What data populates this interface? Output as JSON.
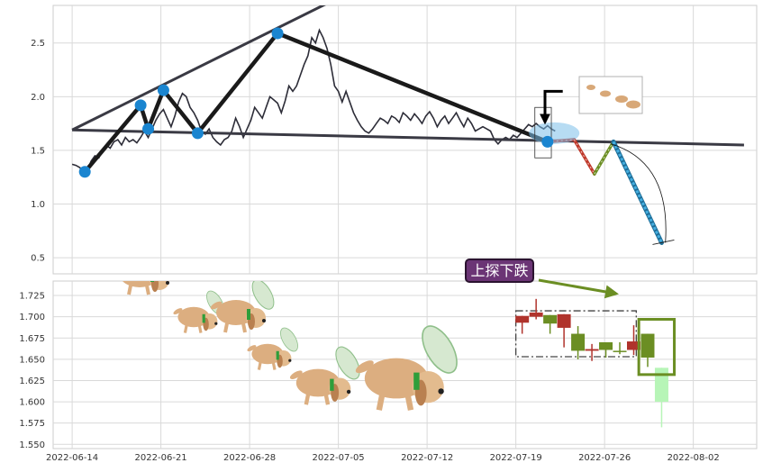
{
  "chart_data": [
    {
      "type": "line",
      "title": "",
      "ylim": [
        0.35,
        2.85
      ],
      "yticks": [
        0.5,
        1.0,
        1.5,
        2.0,
        2.5
      ],
      "ytick_labels": [
        "0.5",
        "1.0",
        "1.5",
        "2.0",
        "2.5"
      ],
      "grid": true,
      "series": [
        {
          "values": [
            [
              0.0,
              1.37
            ],
            [
              0.3,
              1.36
            ],
            [
              0.6,
              1.34
            ],
            [
              0.9,
              1.3
            ],
            [
              1.2,
              1.32
            ],
            [
              1.5,
              1.4
            ],
            [
              1.8,
              1.45
            ],
            [
              2.1,
              1.43
            ],
            [
              2.4,
              1.5
            ],
            [
              2.7,
              1.55
            ],
            [
              3.0,
              1.52
            ],
            [
              3.3,
              1.58
            ],
            [
              3.6,
              1.6
            ],
            [
              3.9,
              1.55
            ],
            [
              4.2,
              1.62
            ],
            [
              4.5,
              1.58
            ],
            [
              4.8,
              1.6
            ],
            [
              5.1,
              1.57
            ],
            [
              5.4,
              1.62
            ],
            [
              5.7,
              1.68
            ],
            [
              6.0,
              1.62
            ],
            [
              6.3,
              1.7
            ],
            [
              6.6,
              1.78
            ],
            [
              6.9,
              1.84
            ],
            [
              7.2,
              1.88
            ],
            [
              7.5,
              1.8
            ],
            [
              7.8,
              1.72
            ],
            [
              8.1,
              1.82
            ],
            [
              8.4,
              1.95
            ],
            [
              8.7,
              2.03
            ],
            [
              9.0,
              2.0
            ],
            [
              9.3,
              1.9
            ],
            [
              9.6,
              1.85
            ],
            [
              9.9,
              1.78
            ],
            [
              10.2,
              1.68
            ],
            [
              10.5,
              1.65
            ],
            [
              10.8,
              1.7
            ],
            [
              11.1,
              1.62
            ],
            [
              11.4,
              1.58
            ],
            [
              11.7,
              1.55
            ],
            [
              12.0,
              1.6
            ],
            [
              12.3,
              1.62
            ],
            [
              12.6,
              1.68
            ],
            [
              12.9,
              1.8
            ],
            [
              13.2,
              1.72
            ],
            [
              13.5,
              1.62
            ],
            [
              13.8,
              1.7
            ],
            [
              14.1,
              1.78
            ],
            [
              14.4,
              1.9
            ],
            [
              14.7,
              1.85
            ],
            [
              15.0,
              1.8
            ],
            [
              15.3,
              1.9
            ],
            [
              15.6,
              2.0
            ],
            [
              15.9,
              1.97
            ],
            [
              16.2,
              1.94
            ],
            [
              16.5,
              1.85
            ],
            [
              16.8,
              1.96
            ],
            [
              17.1,
              2.1
            ],
            [
              17.4,
              2.05
            ],
            [
              17.7,
              2.1
            ],
            [
              18.0,
              2.2
            ],
            [
              18.3,
              2.3
            ],
            [
              18.6,
              2.38
            ],
            [
              18.9,
              2.55
            ],
            [
              19.2,
              2.5
            ],
            [
              19.5,
              2.62
            ],
            [
              19.8,
              2.55
            ],
            [
              20.1,
              2.45
            ],
            [
              20.4,
              2.3
            ],
            [
              20.7,
              2.1
            ],
            [
              21.0,
              2.05
            ],
            [
              21.3,
              1.95
            ],
            [
              21.6,
              2.05
            ],
            [
              21.9,
              1.95
            ],
            [
              22.2,
              1.85
            ],
            [
              22.5,
              1.78
            ],
            [
              22.8,
              1.72
            ],
            [
              23.1,
              1.68
            ],
            [
              23.4,
              1.66
            ],
            [
              23.7,
              1.7
            ],
            [
              24.0,
              1.75
            ],
            [
              24.3,
              1.8
            ],
            [
              24.6,
              1.78
            ],
            [
              24.9,
              1.75
            ],
            [
              25.2,
              1.82
            ],
            [
              25.5,
              1.8
            ],
            [
              25.8,
              1.76
            ],
            [
              26.1,
              1.85
            ],
            [
              26.4,
              1.82
            ],
            [
              26.7,
              1.78
            ],
            [
              27.0,
              1.84
            ],
            [
              27.3,
              1.8
            ],
            [
              27.6,
              1.75
            ],
            [
              27.9,
              1.82
            ],
            [
              28.2,
              1.86
            ],
            [
              28.5,
              1.8
            ],
            [
              28.8,
              1.72
            ],
            [
              29.1,
              1.78
            ],
            [
              29.4,
              1.82
            ],
            [
              29.7,
              1.75
            ],
            [
              30.0,
              1.8
            ],
            [
              30.3,
              1.85
            ],
            [
              30.6,
              1.78
            ],
            [
              30.9,
              1.72
            ],
            [
              31.2,
              1.8
            ],
            [
              31.5,
              1.75
            ],
            [
              31.8,
              1.68
            ],
            [
              32.1,
              1.7
            ],
            [
              32.4,
              1.72
            ],
            [
              32.7,
              1.7
            ],
            [
              33.0,
              1.68
            ],
            [
              33.3,
              1.6
            ],
            [
              33.6,
              1.56
            ],
            [
              33.9,
              1.6
            ],
            [
              34.2,
              1.62
            ],
            [
              34.5,
              1.6
            ],
            [
              34.8,
              1.64
            ],
            [
              35.1,
              1.62
            ],
            [
              35.4,
              1.66
            ],
            [
              35.7,
              1.7
            ],
            [
              36.0,
              1.74
            ],
            [
              36.3,
              1.72
            ],
            [
              36.6,
              1.75
            ],
            [
              36.9,
              1.72
            ],
            [
              37.2,
              1.7
            ],
            [
              37.5,
              1.73
            ],
            [
              37.8,
              1.7
            ],
            [
              38.1,
              1.68
            ]
          ]
        }
      ],
      "annotations": {
        "pivots": [
          [
            1.0,
            1.3
          ],
          [
            5.4,
            1.92
          ],
          [
            6.0,
            1.7
          ],
          [
            7.2,
            2.06
          ],
          [
            9.9,
            1.66
          ],
          [
            16.2,
            2.59
          ],
          [
            37.5,
            1.58
          ]
        ],
        "upper_trendline": [
          [
            0.0,
            1.69
          ],
          [
            21.5,
            2.95
          ]
        ],
        "lower_trendline": [
          [
            0.0,
            1.69
          ],
          [
            53.0,
            1.55
          ]
        ],
        "zigzag_projection": [
          [
            37.5,
            1.58
          ],
          [
            39.6,
            1.6
          ],
          [
            41.2,
            1.28
          ],
          [
            42.7,
            1.58
          ],
          [
            46.5,
            0.64
          ]
        ],
        "projection_arc": [
          [
            42.5,
            1.56
          ],
          [
            46.8,
            0.64
          ]
        ],
        "arrow_pointer": [
          [
            37.0,
            2.05
          ],
          [
            36.5,
            1.75
          ]
        ]
      }
    },
    {
      "type": "candlestick",
      "title": "",
      "x_dates": [
        "2022-06-14",
        "2022-06-21",
        "2022-06-28",
        "2022-07-05",
        "2022-07-12",
        "2022-07-19",
        "2022-07-26",
        "2022-08-02"
      ],
      "ylim": [
        1.545,
        1.742
      ],
      "yticks": [
        1.55,
        1.575,
        1.6,
        1.625,
        1.65,
        1.675,
        1.7,
        1.725
      ],
      "ytick_labels": [
        "1.550",
        "1.575",
        "1.600",
        "1.625",
        "1.650",
        "1.675",
        "1.700",
        "1.725"
      ],
      "grid": true,
      "candles": [
        {
          "d": 35.5,
          "open": 1.693,
          "close": 1.701,
          "high": 1.701,
          "low": 1.68,
          "color": "red"
        },
        {
          "d": 36.6,
          "open": 1.7,
          "close": 1.705,
          "high": 1.721,
          "low": 1.697,
          "color": "red"
        },
        {
          "d": 37.7,
          "open": 1.702,
          "close": 1.692,
          "high": 1.702,
          "low": 1.68,
          "color": "green"
        },
        {
          "d": 38.8,
          "open": 1.703,
          "close": 1.687,
          "high": 1.703,
          "low": 1.664,
          "color": "red"
        },
        {
          "d": 39.9,
          "open": 1.68,
          "close": 1.66,
          "high": 1.689,
          "low": 1.65,
          "color": "green"
        },
        {
          "d": 41.0,
          "open": 1.662,
          "close": 1.66,
          "high": 1.668,
          "low": 1.648,
          "color": "red"
        },
        {
          "d": 42.1,
          "open": 1.67,
          "close": 1.661,
          "high": 1.67,
          "low": 1.652,
          "color": "green"
        },
        {
          "d": 43.2,
          "open": 1.66,
          "close": 1.66,
          "high": 1.67,
          "low": 1.656,
          "color": "green"
        },
        {
          "d": 44.3,
          "open": 1.661,
          "close": 1.671,
          "high": 1.69,
          "low": 1.655,
          "color": "red"
        },
        {
          "d": 45.4,
          "open": 1.68,
          "close": 1.652,
          "high": 1.68,
          "low": 1.641,
          "color": "green"
        },
        {
          "d": 46.5,
          "open": 1.64,
          "close": 1.6,
          "high": 1.64,
          "low": 1.57,
          "color": "light-green"
        }
      ],
      "annotations": {
        "label": "上探下跌",
        "dashed_box": {
          "d0": 35.0,
          "d1": 44.5,
          "top": 1.707,
          "bottom": 1.653
        },
        "highlight_box": {
          "d0": 44.7,
          "d1": 47.5,
          "top": 1.697,
          "bottom": 1.632
        }
      }
    }
  ],
  "colors": {
    "price_line": "#2d2d38",
    "trendline": "#3a3a44",
    "pivot_marker": "#1a85d0",
    "candle_red": "#b0332c",
    "candle_green": "#6b8e23",
    "candle_light_green": "#b7f5b7",
    "label_fill": "#6b3575",
    "label_text": "#ffffff",
    "arrow": "#6b8e23",
    "highlight_box": "#6b8e23",
    "zigzag_down": "#c0392b",
    "zigzag_up": "#6b8e23",
    "projection_line": "#45aee0"
  }
}
